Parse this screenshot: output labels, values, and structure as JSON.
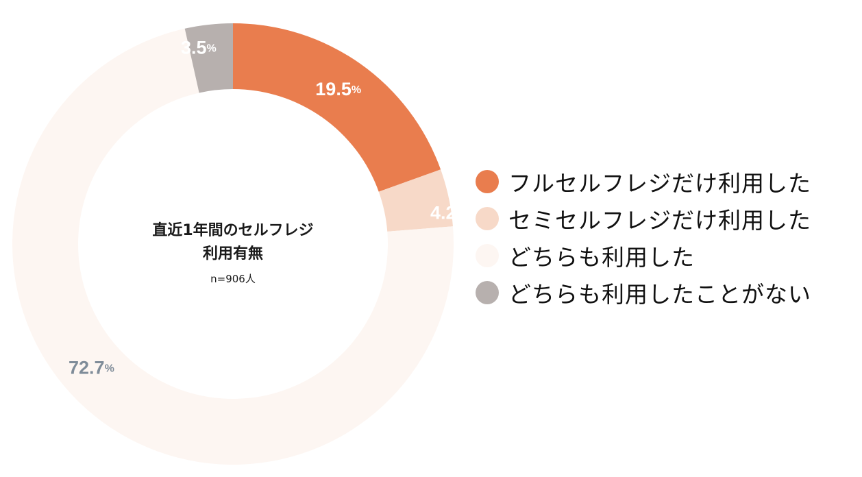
{
  "chart_data": {
    "type": "pie",
    "donut": true,
    "title_lines": [
      "直近1年間のセルフレジ",
      "利用有無"
    ],
    "n_label": "n=906人",
    "unit": "%",
    "series": [
      {
        "name": "フルセルフレジだけ利用した",
        "value": 19.5,
        "label": "19.5",
        "color": "#E97D4E",
        "label_color": "#ffffff"
      },
      {
        "name": "セミセルフレジだけ利用した",
        "value": 4.2,
        "label": "4.2",
        "color": "#F7D9C8",
        "label_color": "#ffffff"
      },
      {
        "name": "どちらも利用した",
        "value": 72.7,
        "label": "72.7",
        "color": "#FDF6F2",
        "label_color": "#7F8C99"
      },
      {
        "name": "どちらも利用したことがない",
        "value": 3.5,
        "label": "3.5",
        "color": "#B7B0AE",
        "label_color": "#ffffff"
      }
    ],
    "legend_position": "right"
  }
}
